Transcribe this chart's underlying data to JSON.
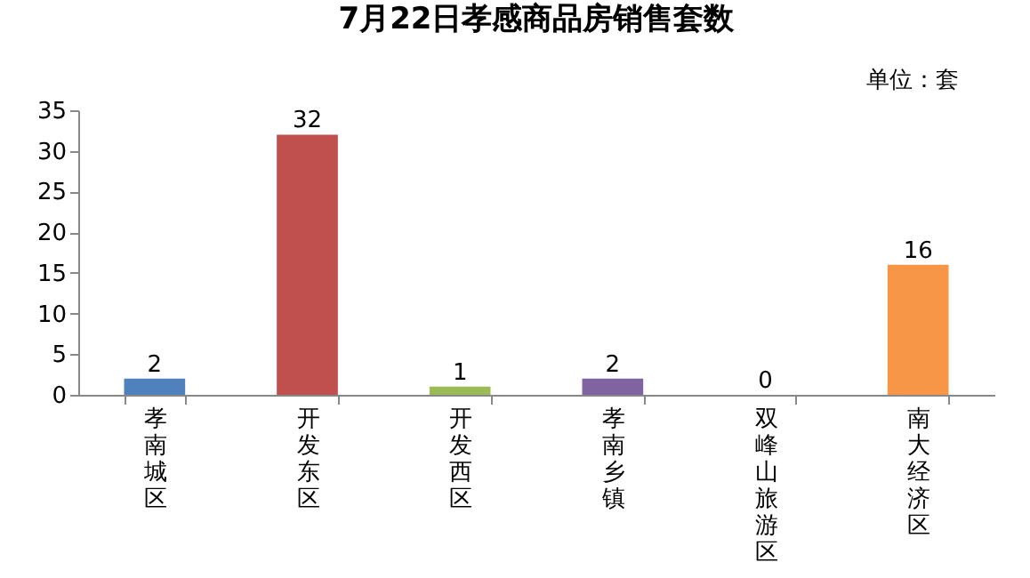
{
  "chart_data": {
    "type": "bar",
    "title": "7月22日孝感商品房销售套数",
    "annotations": [
      "单位：套"
    ],
    "categories": [
      "孝南城区",
      "开发东区",
      "开发西区",
      "孝南乡镇",
      "双峰山旅游区",
      "南大经济区"
    ],
    "values": [
      2,
      32,
      1,
      2,
      0,
      16
    ],
    "colors": [
      "#4f81bd",
      "#c0504d",
      "#9bbb59",
      "#8064a2",
      "#4bacc6",
      "#f79646"
    ],
    "ylim": [
      0,
      35
    ],
    "yticks": [
      0,
      5,
      10,
      15,
      20,
      25,
      30,
      35
    ],
    "grid": false,
    "data_labels": true
  }
}
